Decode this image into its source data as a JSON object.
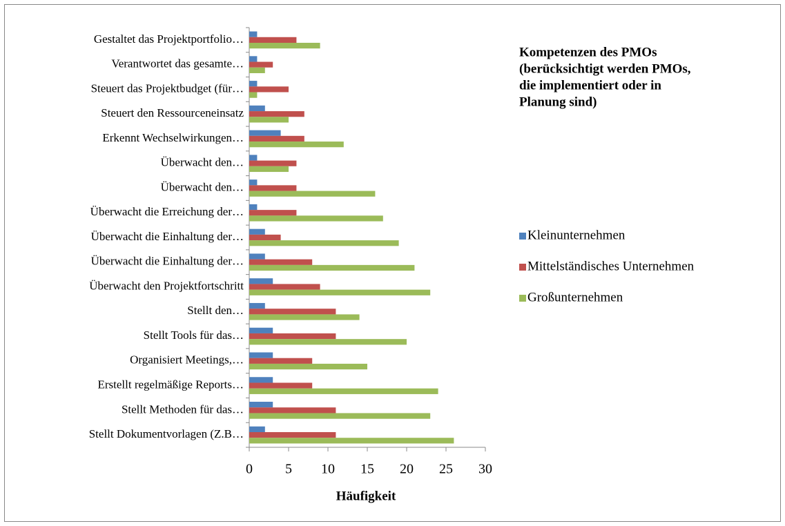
{
  "chart_data": {
    "type": "barh",
    "title": [
      "Kompetenzen des PMOs",
      "(berücksichtigt werden PMOs,",
      "die implementiert oder in",
      "Planung sind)"
    ],
    "x_label": "Häufigkeit",
    "categories": [
      "Gestaltet das Projektportfolio…",
      "Verantwortet das gesamte…",
      "Steuert das Projektbudget (für…",
      "Steuert den Ressourceneinsatz",
      "Erkennt Wechselwirkungen…",
      "Überwacht den…",
      "Überwacht den…",
      "Überwacht die Erreichung der…",
      "Überwacht die Einhaltung der…",
      "Überwacht die Einhaltung der…",
      "Überwacht den Projektfortschritt",
      "Stellt den…",
      "Stellt Tools für das…",
      "Organisiert Meetings,…",
      "Erstellt regelmäßige Reports…",
      "Stellt Methoden für das…",
      "Stellt Dokumentvorlagen (Z.B…"
    ],
    "series": [
      {
        "name": "Kleinunternehmen",
        "color": "#4f81bd",
        "values": [
          1,
          1,
          1,
          2,
          4,
          1,
          1,
          1,
          2,
          2,
          3,
          2,
          3,
          3,
          3,
          3,
          2
        ]
      },
      {
        "name": "Mittelständisches Unternehmen",
        "color": "#c0504d",
        "values": [
          6,
          3,
          5,
          7,
          7,
          6,
          6,
          6,
          4,
          8,
          9,
          11,
          11,
          8,
          8,
          11,
          11
        ]
      },
      {
        "name": "Großunternehmen",
        "color": "#9bbb59",
        "values": [
          9,
          2,
          1,
          5,
          12,
          5,
          16,
          17,
          19,
          21,
          23,
          14,
          20,
          15,
          24,
          23,
          26
        ]
      }
    ],
    "xlim": [
      0,
      30
    ],
    "xticks": [
      0,
      5,
      10,
      15,
      20,
      25,
      30
    ],
    "legend": "right"
  }
}
